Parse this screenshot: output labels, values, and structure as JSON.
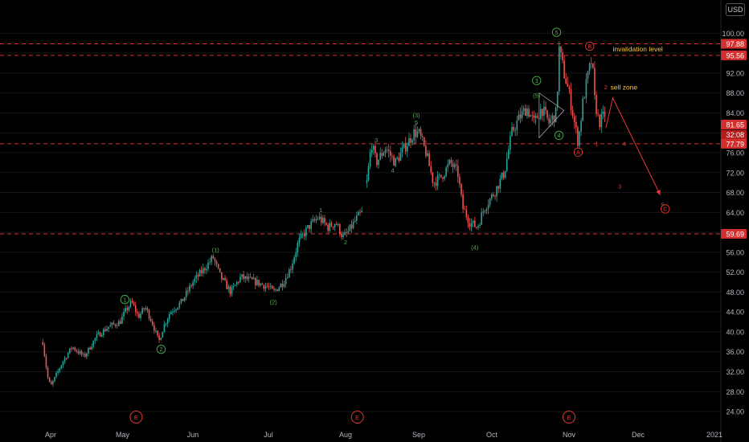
{
  "colors": {
    "background": "#000000",
    "up": "#26a69a",
    "down": "#ef5350",
    "level_line": "#d32f2f",
    "projection": "#e53935",
    "wave_green": "#4caf50",
    "wave_red": "#e53935",
    "annotation": "#f6c343",
    "axis_text": "#b2b5be",
    "grid": "#161616"
  },
  "currency": "USD",
  "chart_data": {
    "type": "candlestick",
    "x_labels": [
      "Apr",
      "May",
      "Jun",
      "Jul",
      "Aug",
      "Sep",
      "Oct",
      "Nov",
      "Dec",
      "2021"
    ],
    "y_ticks": [
      24,
      28,
      32,
      36,
      40,
      44,
      48,
      52,
      56,
      60,
      64,
      68,
      72,
      76,
      80,
      84,
      88,
      92,
      96,
      100
    ],
    "y_tick_labels": [
      "24.00",
      "28.00",
      "32.00",
      "36.00",
      "40.00",
      "44.00",
      "48.00",
      "52.00",
      "56.00",
      "60.00",
      "64.00",
      "68.00",
      "72.00",
      "76.00",
      "80.00",
      "84.00",
      "88.00",
      "92.00",
      "96.00",
      "100.00"
    ],
    "ylim": [
      22.5,
      102.5
    ],
    "price_path": [
      [
        "Mar 27",
        38
      ],
      [
        "Mar 30",
        31
      ],
      [
        "Apr 1",
        29
      ],
      [
        "Apr 6",
        34
      ],
      [
        "Apr 10",
        37
      ],
      [
        "Apr 15",
        35
      ],
      [
        "Apr 20",
        39
      ],
      [
        "Apr 25",
        41
      ],
      [
        "Apr 30",
        42
      ],
      [
        "May 2",
        44
      ],
      [
        "May 5",
        46
      ],
      [
        "May 8",
        43
      ],
      [
        "May 11",
        45
      ],
      [
        "May 14",
        42
      ],
      [
        "May 17",
        38
      ],
      [
        "May 19",
        41
      ],
      [
        "May 22",
        44
      ],
      [
        "May 27",
        46
      ],
      [
        "Jun 1",
        50
      ],
      [
        "Jun 6",
        53
      ],
      [
        "Jun 9",
        55
      ],
      [
        "Jun 12",
        51
      ],
      [
        "Jun 16",
        48
      ],
      [
        "Jun 20",
        51
      ],
      [
        "Jun 26",
        50
      ],
      [
        "Jul 1",
        49
      ],
      [
        "Jul 3",
        48
      ],
      [
        "Jul 7",
        50
      ],
      [
        "Jul 10",
        53
      ],
      [
        "Jul 13",
        58
      ],
      [
        "Jul 17",
        61
      ],
      [
        "Jul 21",
        63
      ],
      [
        "Jul 25",
        61
      ],
      [
        "Jul 28",
        62
      ],
      [
        "Jul 31",
        59
      ],
      [
        "Aug 2",
        60
      ],
      [
        "Aug 6",
        63
      ],
      [
        "Aug 8",
        64
      ]
    ],
    "price_path_2": [
      [
        "Aug 10",
        70
      ],
      [
        "Aug 12",
        78
      ],
      [
        "Aug 14",
        74
      ],
      [
        "Aug 18",
        77
      ],
      [
        "Aug 22",
        74
      ],
      [
        "Aug 26",
        77
      ],
      [
        "Aug 30",
        80
      ],
      [
        "Sep 1",
        80
      ],
      [
        "Sep 4",
        76
      ],
      [
        "Sep 7",
        70
      ],
      [
        "Sep 10",
        71
      ],
      [
        "Sep 14",
        74
      ],
      [
        "Sep 17",
        72
      ],
      [
        "Sep 19",
        65
      ],
      [
        "Sep 22",
        62
      ],
      [
        "Sep 25",
        61
      ],
      [
        "Sep 28",
        65
      ],
      [
        "Oct 2",
        68
      ],
      [
        "Oct 6",
        72
      ],
      [
        "Oct 9",
        80
      ],
      [
        "Oct 12",
        83
      ],
      [
        "Oct 15",
        85
      ],
      [
        "Oct 18",
        82
      ],
      [
        "Oct 21",
        85
      ],
      [
        "Oct 24",
        82
      ],
      [
        "Oct 27",
        84
      ],
      [
        "Oct 28",
        97
      ],
      [
        "Oct 30",
        92
      ],
      [
        "Nov 1",
        88
      ],
      [
        "Nov 3",
        83
      ],
      [
        "Nov 5",
        78
      ],
      [
        "Nov 7",
        86
      ],
      [
        "Nov 9",
        91
      ],
      [
        "Nov 11",
        95
      ],
      [
        "Nov 12",
        87
      ],
      [
        "Nov 14",
        82
      ],
      [
        "Nov 17",
        84
      ]
    ],
    "horizontal_levels": [
      97.88,
      95.56,
      77.79,
      59.69
    ],
    "price_tags": [
      {
        "label": "97.88",
        "value": 97.88
      },
      {
        "label": "95.56",
        "value": 95.56
      },
      {
        "label": "81.65",
        "value": 81.65
      },
      {
        "label": "32:08",
        "value": 79.6
      },
      {
        "label": "77.79",
        "value": 77.79
      },
      {
        "label": "59.69",
        "value": 59.69
      }
    ],
    "projection": [
      [
        "Nov 17",
        81
      ],
      [
        "Nov 20",
        87
      ],
      [
        "Dec 10",
        67.5
      ]
    ],
    "wave_labels": [
      {
        "text": "1",
        "circled": true,
        "color": "green",
        "x": "May 2",
        "y": 46.5
      },
      {
        "text": "2",
        "circled": true,
        "color": "green",
        "x": "May 18",
        "y": 36.5
      },
      {
        "text": "(1)",
        "circled": false,
        "color": "green",
        "x": "Jun 10",
        "y": 56.5
      },
      {
        "text": "(2)",
        "circled": false,
        "color": "green",
        "x": "Jul 3",
        "y": 46
      },
      {
        "text": "1",
        "circled": false,
        "color": "green",
        "x": "Jul 22",
        "y": 64.5
      },
      {
        "text": "2",
        "circled": false,
        "color": "green",
        "x": "Aug 1",
        "y": 58
      },
      {
        "text": "3",
        "circled": false,
        "color": "green",
        "x": "Aug 14",
        "y": 78.5
      },
      {
        "text": "4",
        "circled": false,
        "color": "green",
        "x": "Aug 21",
        "y": 72.5
      },
      {
        "text": "(3)",
        "circled": false,
        "color": "green",
        "x": "Aug 31",
        "y": 83.5
      },
      {
        "text": "5",
        "circled": false,
        "color": "green",
        "x": "Aug 31",
        "y": 82.1
      },
      {
        "text": "(4)",
        "circled": false,
        "color": "green",
        "x": "Sep 24",
        "y": 57
      },
      {
        "text": "3",
        "circled": true,
        "color": "green",
        "x": "Oct 19",
        "y": 90.5
      },
      {
        "text": "(5)",
        "circled": false,
        "color": "green",
        "x": "Oct 19",
        "y": 87.5
      },
      {
        "text": "4",
        "circled": true,
        "color": "green",
        "x": "Oct 28",
        "y": 79.5
      },
      {
        "text": "5",
        "circled": true,
        "color": "green",
        "x": "Oct 27",
        "y": 100.2
      },
      {
        "text": "A",
        "circled": true,
        "color": "red",
        "x": "Nov 5",
        "y": 76.1
      },
      {
        "text": "B",
        "circled": true,
        "color": "red",
        "x": "Nov 10",
        "y": 97.4
      },
      {
        "text": "1",
        "circled": false,
        "color": "red",
        "x": "Nov 13",
        "y": 77.8
      },
      {
        "text": "2",
        "circled": false,
        "color": "red",
        "x": "Nov 17",
        "y": 89.2
      },
      {
        "text": "4",
        "circled": false,
        "color": "red",
        "x": "Nov 25",
        "y": 77.8
      },
      {
        "text": "3",
        "circled": false,
        "color": "red",
        "x": "Nov 23",
        "y": 69.2
      },
      {
        "text": "5",
        "circled": false,
        "color": "red",
        "x": "Dec 11",
        "y": 65.5
      },
      {
        "text": "C",
        "circled": true,
        "color": "red",
        "x": "Dec 12",
        "y": 64.7
      }
    ],
    "annotations": [
      {
        "text": "invalidation level",
        "x": "Nov 20",
        "y": 96.8
      },
      {
        "text": "sell zone",
        "x": "Nov 19",
        "y": 89.2
      }
    ],
    "events": [
      {
        "label": "E",
        "x": "May 7"
      },
      {
        "label": "E",
        "x": "Aug 6"
      },
      {
        "label": "E",
        "x": "Nov 1"
      }
    ],
    "triangle": [
      [
        "Oct 20",
        88
      ],
      [
        "Oct 20",
        79
      ],
      [
        "Oct 30",
        84.5
      ]
    ]
  }
}
